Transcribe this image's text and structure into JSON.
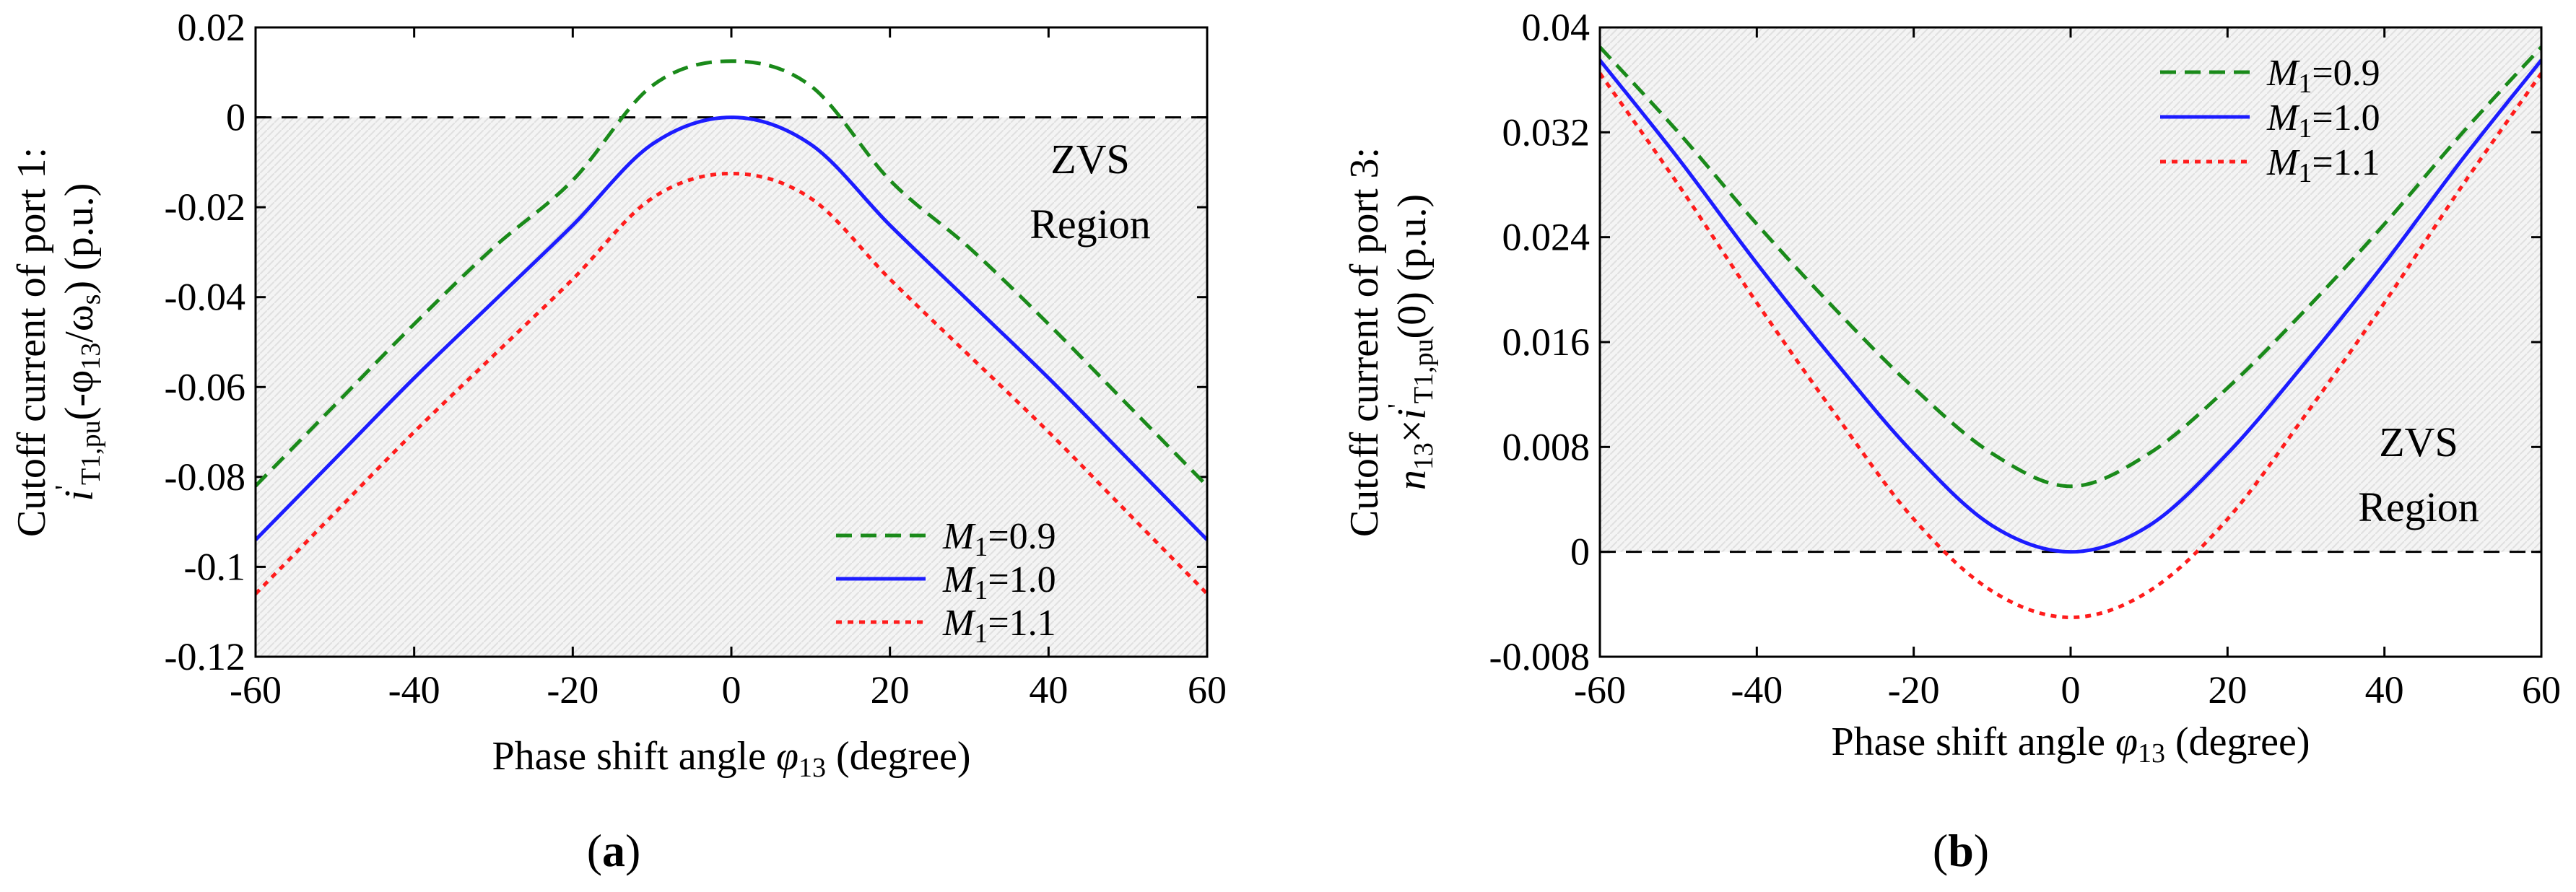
{
  "chart_data": [
    {
      "type": "line",
      "panel_label": "(a)",
      "panel_letter": "a",
      "xlabel_main": "Phase shift angle ",
      "xlabel_symbol": "φ",
      "xlabel_sub": "13",
      "xlabel_tail": " (degree)",
      "ylabel_line1": "Cutoff current of port 1:",
      "ylabel_i": "i",
      "ylabel_prime": "'",
      "ylabel_sub": "T1,pu",
      "ylabel_mid": "(-φ",
      "ylabel_sub2": "13",
      "ylabel_mid2": "/ω",
      "ylabel_sub3": "s",
      "ylabel_tail": ") (p.u.)",
      "xlim": [
        -60,
        60
      ],
      "ylim": [
        -0.12,
        0.02
      ],
      "xticks": [
        -60,
        -40,
        -20,
        0,
        20,
        40,
        60
      ],
      "xtick_labels": [
        "-60",
        "-40",
        "-20",
        "0",
        "20",
        "40",
        "60"
      ],
      "yticks": [
        -0.12,
        -0.1,
        -0.08,
        -0.06,
        -0.04,
        -0.02,
        0,
        0.02
      ],
      "ytick_labels": [
        "-0.12",
        "-0.1",
        "-0.08",
        "-0.06",
        "-0.04",
        "-0.02",
        "0",
        "0.02"
      ],
      "zvs_region": {
        "line1": "ZVS",
        "line2": "Region",
        "bound": 0,
        "side": "below"
      },
      "reference_line": 0,
      "x": [
        -60,
        -50,
        -40,
        -30,
        -20,
        -10,
        0,
        10,
        20,
        30,
        40,
        50,
        60
      ],
      "series": [
        {
          "name": "M1=0.9",
          "legend_var": "M",
          "legend_sub": "1",
          "legend_val": "=0.9",
          "color": "#1a8a1a",
          "dash": "dashed",
          "values": [
            -0.082,
            -0.064,
            -0.046,
            -0.029,
            -0.014,
            0.007,
            0.0125,
            0.007,
            -0.014,
            -0.029,
            -0.046,
            -0.064,
            -0.082
          ]
        },
        {
          "name": "M1=1.0",
          "legend_var": "M",
          "legend_sub": "1",
          "legend_val": "=1.0",
          "color": "#1c1cff",
          "dash": "solid",
          "values": [
            -0.094,
            -0.076,
            -0.058,
            -0.041,
            -0.024,
            -0.006,
            0.0,
            -0.006,
            -0.024,
            -0.041,
            -0.058,
            -0.076,
            -0.094
          ]
        },
        {
          "name": "M1=1.1",
          "legend_var": "M",
          "legend_sub": "1",
          "legend_val": "=1.1",
          "color": "#ff1c1c",
          "dash": "dotted",
          "values": [
            -0.106,
            -0.088,
            -0.07,
            -0.053,
            -0.036,
            -0.018,
            -0.0125,
            -0.018,
            -0.036,
            -0.053,
            -0.07,
            -0.088,
            -0.106
          ]
        }
      ]
    },
    {
      "type": "line",
      "panel_label": "(b)",
      "panel_letter": "b",
      "xlabel_main": "Phase shift angle ",
      "xlabel_symbol": "φ",
      "xlabel_sub": "13",
      "xlabel_tail": " (degree)",
      "ylabel_line1": "Cutoff current of port 3:",
      "ylabel_n": "n",
      "ylabel_nsub": "13",
      "ylabel_times": "×",
      "ylabel_i": "i",
      "ylabel_prime": "'",
      "ylabel_sub": "T1,pu",
      "ylabel_tail": "(0) (p.u.)",
      "xlim": [
        -60,
        60
      ],
      "ylim": [
        -0.008,
        0.04
      ],
      "xticks": [
        -60,
        -40,
        -20,
        0,
        20,
        40,
        60
      ],
      "xtick_labels": [
        "-60",
        "-40",
        "-20",
        "0",
        "20",
        "40",
        "60"
      ],
      "yticks": [
        -0.008,
        0,
        0.008,
        0.016,
        0.024,
        0.032,
        0.04
      ],
      "ytick_labels": [
        "-0.008",
        "0",
        "0.008",
        "0.016",
        "0.024",
        "0.032",
        "0.04"
      ],
      "zvs_region": {
        "line1": "ZVS",
        "line2": "Region",
        "bound": 0,
        "side": "above"
      },
      "reference_line": 0,
      "x": [
        -60,
        -50,
        -40,
        -30,
        -20,
        -10,
        0,
        10,
        20,
        30,
        40,
        50,
        60
      ],
      "series": [
        {
          "name": "M1=0.9",
          "legend_var": "M",
          "legend_sub": "1",
          "legend_val": "=0.9",
          "color": "#1a8a1a",
          "dash": "dashed",
          "values": [
            0.0385,
            0.032,
            0.025,
            0.0185,
            0.0125,
            0.0075,
            0.005,
            0.0075,
            0.0125,
            0.0185,
            0.025,
            0.032,
            0.0385
          ]
        },
        {
          "name": "M1=1.0",
          "legend_var": "M",
          "legend_sub": "1",
          "legend_val": "=1.0",
          "color": "#1c1cff",
          "dash": "solid",
          "values": [
            0.0375,
            0.03,
            0.022,
            0.0145,
            0.0075,
            0.002,
            0.0,
            0.002,
            0.0075,
            0.0145,
            0.022,
            0.03,
            0.0375
          ]
        },
        {
          "name": "M1=1.1",
          "legend_var": "M",
          "legend_sub": "1",
          "legend_val": "=1.1",
          "color": "#ff1c1c",
          "dash": "dotted",
          "values": [
            0.0365,
            0.028,
            0.019,
            0.0105,
            0.0025,
            -0.003,
            -0.005,
            -0.003,
            0.0025,
            0.0105,
            0.019,
            0.028,
            0.0365
          ]
        }
      ]
    }
  ]
}
